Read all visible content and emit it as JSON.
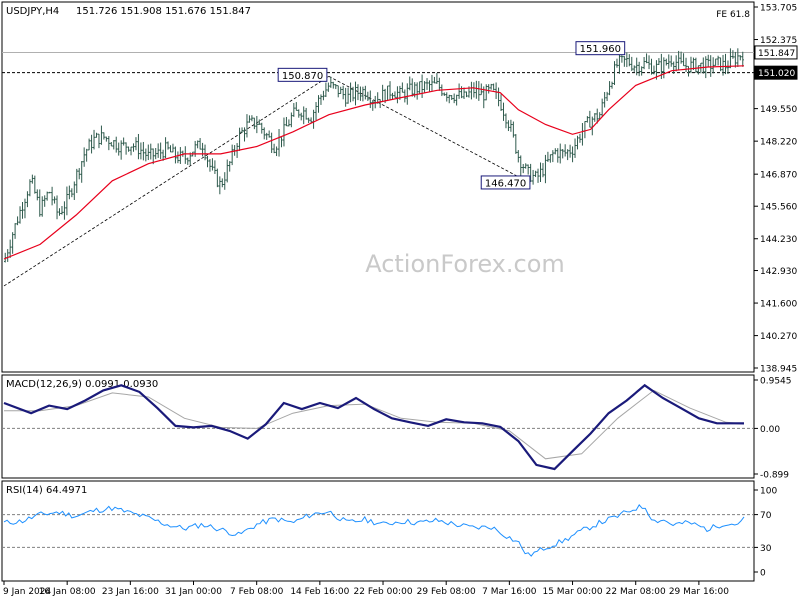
{
  "chart_data": [
    {
      "type": "candlestick",
      "title": "USDJPY,H4",
      "ohlc_header": [
        "151.726",
        "151.908",
        "151.676",
        "151.847"
      ],
      "fe_label": "FE 61.8",
      "watermark": "ActionForex.com",
      "ylim": [
        138.945,
        153.705
      ],
      "y_ticks": [
        "153.705",
        "152.375",
        "151.020",
        "149.550",
        "148.220",
        "146.870",
        "145.560",
        "144.230",
        "142.930",
        "141.600",
        "140.270",
        "138.945"
      ],
      "current_price": "151.847",
      "current_price_value": 151.847,
      "level_line": {
        "label": "151.020",
        "value": 151.02
      },
      "annotations": [
        {
          "text": "150.870",
          "price": 150.87,
          "x_day": 36.0
        },
        {
          "text": "146.470",
          "price": 146.47,
          "x_day": 58.5
        },
        {
          "text": "151.960",
          "price": 151.96,
          "x_day": 69.0
        }
      ],
      "close_path": [
        [
          0,
          143.3
        ],
        [
          1,
          144.5
        ],
        [
          2,
          145.6
        ],
        [
          3,
          146.6
        ],
        [
          4,
          145.4
        ],
        [
          5,
          146.2
        ],
        [
          6,
          145.2
        ],
        [
          7,
          145.8
        ],
        [
          8,
          146.8
        ],
        [
          9,
          147.8
        ],
        [
          10,
          148.3
        ],
        [
          11,
          148.4
        ],
        [
          12,
          148.2
        ],
        [
          13,
          148.0
        ],
        [
          14,
          148.1
        ],
        [
          15,
          147.9
        ],
        [
          16,
          147.6
        ],
        [
          17,
          147.7
        ],
        [
          18,
          147.9
        ],
        [
          19,
          147.6
        ],
        [
          20,
          147.5
        ],
        [
          21,
          147.9
        ],
        [
          22,
          148.1
        ],
        [
          23,
          147.0
        ],
        [
          24,
          146.4
        ],
        [
          25,
          147.3
        ],
        [
          26,
          148.4
        ],
        [
          27,
          148.9
        ],
        [
          28,
          149.0
        ],
        [
          29,
          148.5
        ],
        [
          30,
          148.0
        ],
        [
          31,
          148.6
        ],
        [
          32,
          149.3
        ],
        [
          33,
          149.5
        ],
        [
          34,
          149.2
        ],
        [
          35,
          150.0
        ],
        [
          36,
          150.5
        ],
        [
          37,
          150.3
        ],
        [
          38,
          150.0
        ],
        [
          39,
          150.2
        ],
        [
          40,
          150.3
        ],
        [
          41,
          149.9
        ],
        [
          42,
          150.1
        ],
        [
          43,
          150.3
        ],
        [
          44,
          150.1
        ],
        [
          45,
          150.3
        ],
        [
          46,
          150.4
        ],
        [
          47,
          150.5
        ],
        [
          48,
          150.5
        ],
        [
          49,
          150.2
        ],
        [
          50,
          150.1
        ],
        [
          51,
          150.0
        ],
        [
          52,
          150.3
        ],
        [
          53,
          150.1
        ],
        [
          54,
          150.3
        ],
        [
          55,
          149.8
        ],
        [
          56,
          148.9
        ],
        [
          57,
          147.6
        ],
        [
          58,
          146.9
        ],
        [
          59,
          146.7
        ],
        [
          60,
          147.2
        ],
        [
          61,
          147.8
        ],
        [
          62,
          147.7
        ],
        [
          63,
          147.9
        ],
        [
          64,
          148.6
        ],
        [
          65,
          149.1
        ],
        [
          66,
          149.3
        ],
        [
          67,
          150.5
        ],
        [
          68,
          151.4
        ],
        [
          69,
          151.5
        ],
        [
          70,
          151.3
        ],
        [
          71,
          151.4
        ],
        [
          72,
          151.2
        ],
        [
          73,
          151.3
        ],
        [
          74,
          151.6
        ],
        [
          75,
          151.3
        ],
        [
          76,
          151.3
        ],
        [
          77,
          151.3
        ],
        [
          78,
          151.3
        ],
        [
          79,
          151.4
        ],
        [
          80,
          151.3
        ],
        [
          81,
          151.6
        ],
        [
          82,
          151.847
        ]
      ],
      "ma_path": [
        [
          0,
          143.4
        ],
        [
          4,
          144.0
        ],
        [
          8,
          145.2
        ],
        [
          12,
          146.6
        ],
        [
          16,
          147.3
        ],
        [
          20,
          147.7
        ],
        [
          24,
          147.7
        ],
        [
          28,
          148.0
        ],
        [
          32,
          148.6
        ],
        [
          36,
          149.3
        ],
        [
          40,
          149.7
        ],
        [
          44,
          150.0
        ],
        [
          48,
          150.3
        ],
        [
          52,
          150.4
        ],
        [
          55,
          150.2
        ],
        [
          57,
          149.5
        ],
        [
          60,
          148.9
        ],
        [
          63,
          148.5
        ],
        [
          65,
          148.7
        ],
        [
          67,
          149.5
        ],
        [
          70,
          150.5
        ],
        [
          74,
          151.1
        ],
        [
          78,
          151.25
        ],
        [
          82,
          151.3
        ]
      ],
      "trendlines": [
        {
          "from": [
            0,
            142.3
          ],
          "to": [
            36,
            150.87
          ]
        },
        {
          "from": [
            36,
            150.87
          ],
          "to": [
            58.5,
            146.47
          ]
        }
      ]
    },
    {
      "type": "line",
      "title": "MACD(12,26,9) 0.0991 0.0930",
      "ylim": [
        -0.899,
        0.9545
      ],
      "y_ticks": [
        "0.9545",
        "0.00",
        "-0.899"
      ],
      "zero_line": 0,
      "series": [
        {
          "values": [
            [
              0,
              0.5
            ],
            [
              3,
              0.3
            ],
            [
              5,
              0.45
            ],
            [
              7,
              0.38
            ],
            [
              9,
              0.55
            ],
            [
              11,
              0.75
            ],
            [
              13,
              0.85
            ],
            [
              15,
              0.72
            ],
            [
              17,
              0.4
            ],
            [
              19,
              0.05
            ],
            [
              21,
              0.02
            ],
            [
              23,
              0.05
            ],
            [
              25,
              -0.05
            ],
            [
              27,
              -0.2
            ],
            [
              29,
              0.08
            ],
            [
              31,
              0.5
            ],
            [
              33,
              0.38
            ],
            [
              35,
              0.5
            ],
            [
              37,
              0.4
            ],
            [
              39,
              0.6
            ],
            [
              41,
              0.38
            ],
            [
              43,
              0.2
            ],
            [
              45,
              0.12
            ],
            [
              47,
              0.05
            ],
            [
              49,
              0.18
            ],
            [
              51,
              0.12
            ],
            [
              53,
              0.1
            ],
            [
              55,
              0.03
            ],
            [
              57,
              -0.25
            ],
            [
              59,
              -0.72
            ],
            [
              61,
              -0.8
            ],
            [
              63,
              -0.45
            ],
            [
              65,
              -0.1
            ],
            [
              67,
              0.3
            ],
            [
              69,
              0.55
            ],
            [
              71,
              0.85
            ],
            [
              73,
              0.6
            ],
            [
              75,
              0.4
            ],
            [
              77,
              0.2
            ],
            [
              79,
              0.1
            ],
            [
              81,
              0.1
            ],
            [
              82,
              0.0991
            ]
          ]
        },
        {
          "values": [
            [
              0,
              0.35
            ],
            [
              4,
              0.35
            ],
            [
              8,
              0.45
            ],
            [
              12,
              0.7
            ],
            [
              16,
              0.62
            ],
            [
              20,
              0.2
            ],
            [
              24,
              0.02
            ],
            [
              28,
              0.0
            ],
            [
              32,
              0.3
            ],
            [
              36,
              0.45
            ],
            [
              40,
              0.48
            ],
            [
              44,
              0.2
            ],
            [
              48,
              0.12
            ],
            [
              52,
              0.1
            ],
            [
              56,
              -0.05
            ],
            [
              60,
              -0.6
            ],
            [
              64,
              -0.5
            ],
            [
              68,
              0.2
            ],
            [
              72,
              0.75
            ],
            [
              76,
              0.4
            ],
            [
              80,
              0.12
            ],
            [
              82,
              0.093
            ]
          ]
        }
      ]
    },
    {
      "type": "line",
      "title": "RSI(14) 64.4971",
      "ylim": [
        0,
        100
      ],
      "y_ticks": [
        "100",
        "70",
        "30",
        "0"
      ],
      "levels": [
        70,
        30
      ],
      "series": [
        {
          "values": [
            [
              0,
              60
            ],
            [
              2,
              62
            ],
            [
              4,
              70
            ],
            [
              6,
              73
            ],
            [
              8,
              68
            ],
            [
              10,
              75
            ],
            [
              12,
              78
            ],
            [
              14,
              72
            ],
            [
              16,
              66
            ],
            [
              18,
              58
            ],
            [
              20,
              53
            ],
            [
              22,
              58
            ],
            [
              24,
              52
            ],
            [
              26,
              45
            ],
            [
              28,
              58
            ],
            [
              30,
              65
            ],
            [
              32,
              60
            ],
            [
              34,
              70
            ],
            [
              36,
              74
            ],
            [
              38,
              60
            ],
            [
              40,
              64
            ],
            [
              42,
              58
            ],
            [
              44,
              62
            ],
            [
              46,
              60
            ],
            [
              48,
              63
            ],
            [
              50,
              58
            ],
            [
              52,
              54
            ],
            [
              54,
              55
            ],
            [
              56,
              42
            ],
            [
              57,
              36
            ],
            [
              58,
              20
            ],
            [
              59,
              24
            ],
            [
              60,
              30
            ],
            [
              62,
              38
            ],
            [
              64,
              50
            ],
            [
              66,
              60
            ],
            [
              68,
              68
            ],
            [
              70,
              78
            ],
            [
              71,
              80
            ],
            [
              72,
              62
            ],
            [
              73,
              64
            ],
            [
              74,
              58
            ],
            [
              76,
              60
            ],
            [
              78,
              52
            ],
            [
              80,
              60
            ],
            [
              81,
              58
            ],
            [
              82,
              64.4971
            ]
          ]
        }
      ]
    }
  ],
  "x_axis": {
    "ticks": [
      {
        "label": "9 Jan 2024",
        "day": 0
      },
      {
        "label": "16 Jan 08:00",
        "day": 7
      },
      {
        "label": "23 Jan 16:00",
        "day": 14
      },
      {
        "label": "31 Jan 00:00",
        "day": 21
      },
      {
        "label": "7 Feb 08:00",
        "day": 28
      },
      {
        "label": "14 Feb 16:00",
        "day": 35
      },
      {
        "label": "22 Feb 00:00",
        "day": 42
      },
      {
        "label": "29 Feb 08:00",
        "day": 49
      },
      {
        "label": "7 Mar 16:00",
        "day": 56
      },
      {
        "label": "15 Mar 00:00",
        "day": 63
      },
      {
        "label": "22 Mar 08:00",
        "day": 70
      },
      {
        "label": "29 Mar 16:00",
        "day": 77
      }
    ],
    "xlim": [
      0,
      82
    ]
  },
  "colors": {
    "candle": "#2e5a4c",
    "ma": "#e8001c",
    "macd": "#1a1a7a",
    "signal": "#a6a6a6",
    "rsi": "#1e90ff",
    "trend": "#000000",
    "annotation_box": "#1a1a7a"
  }
}
